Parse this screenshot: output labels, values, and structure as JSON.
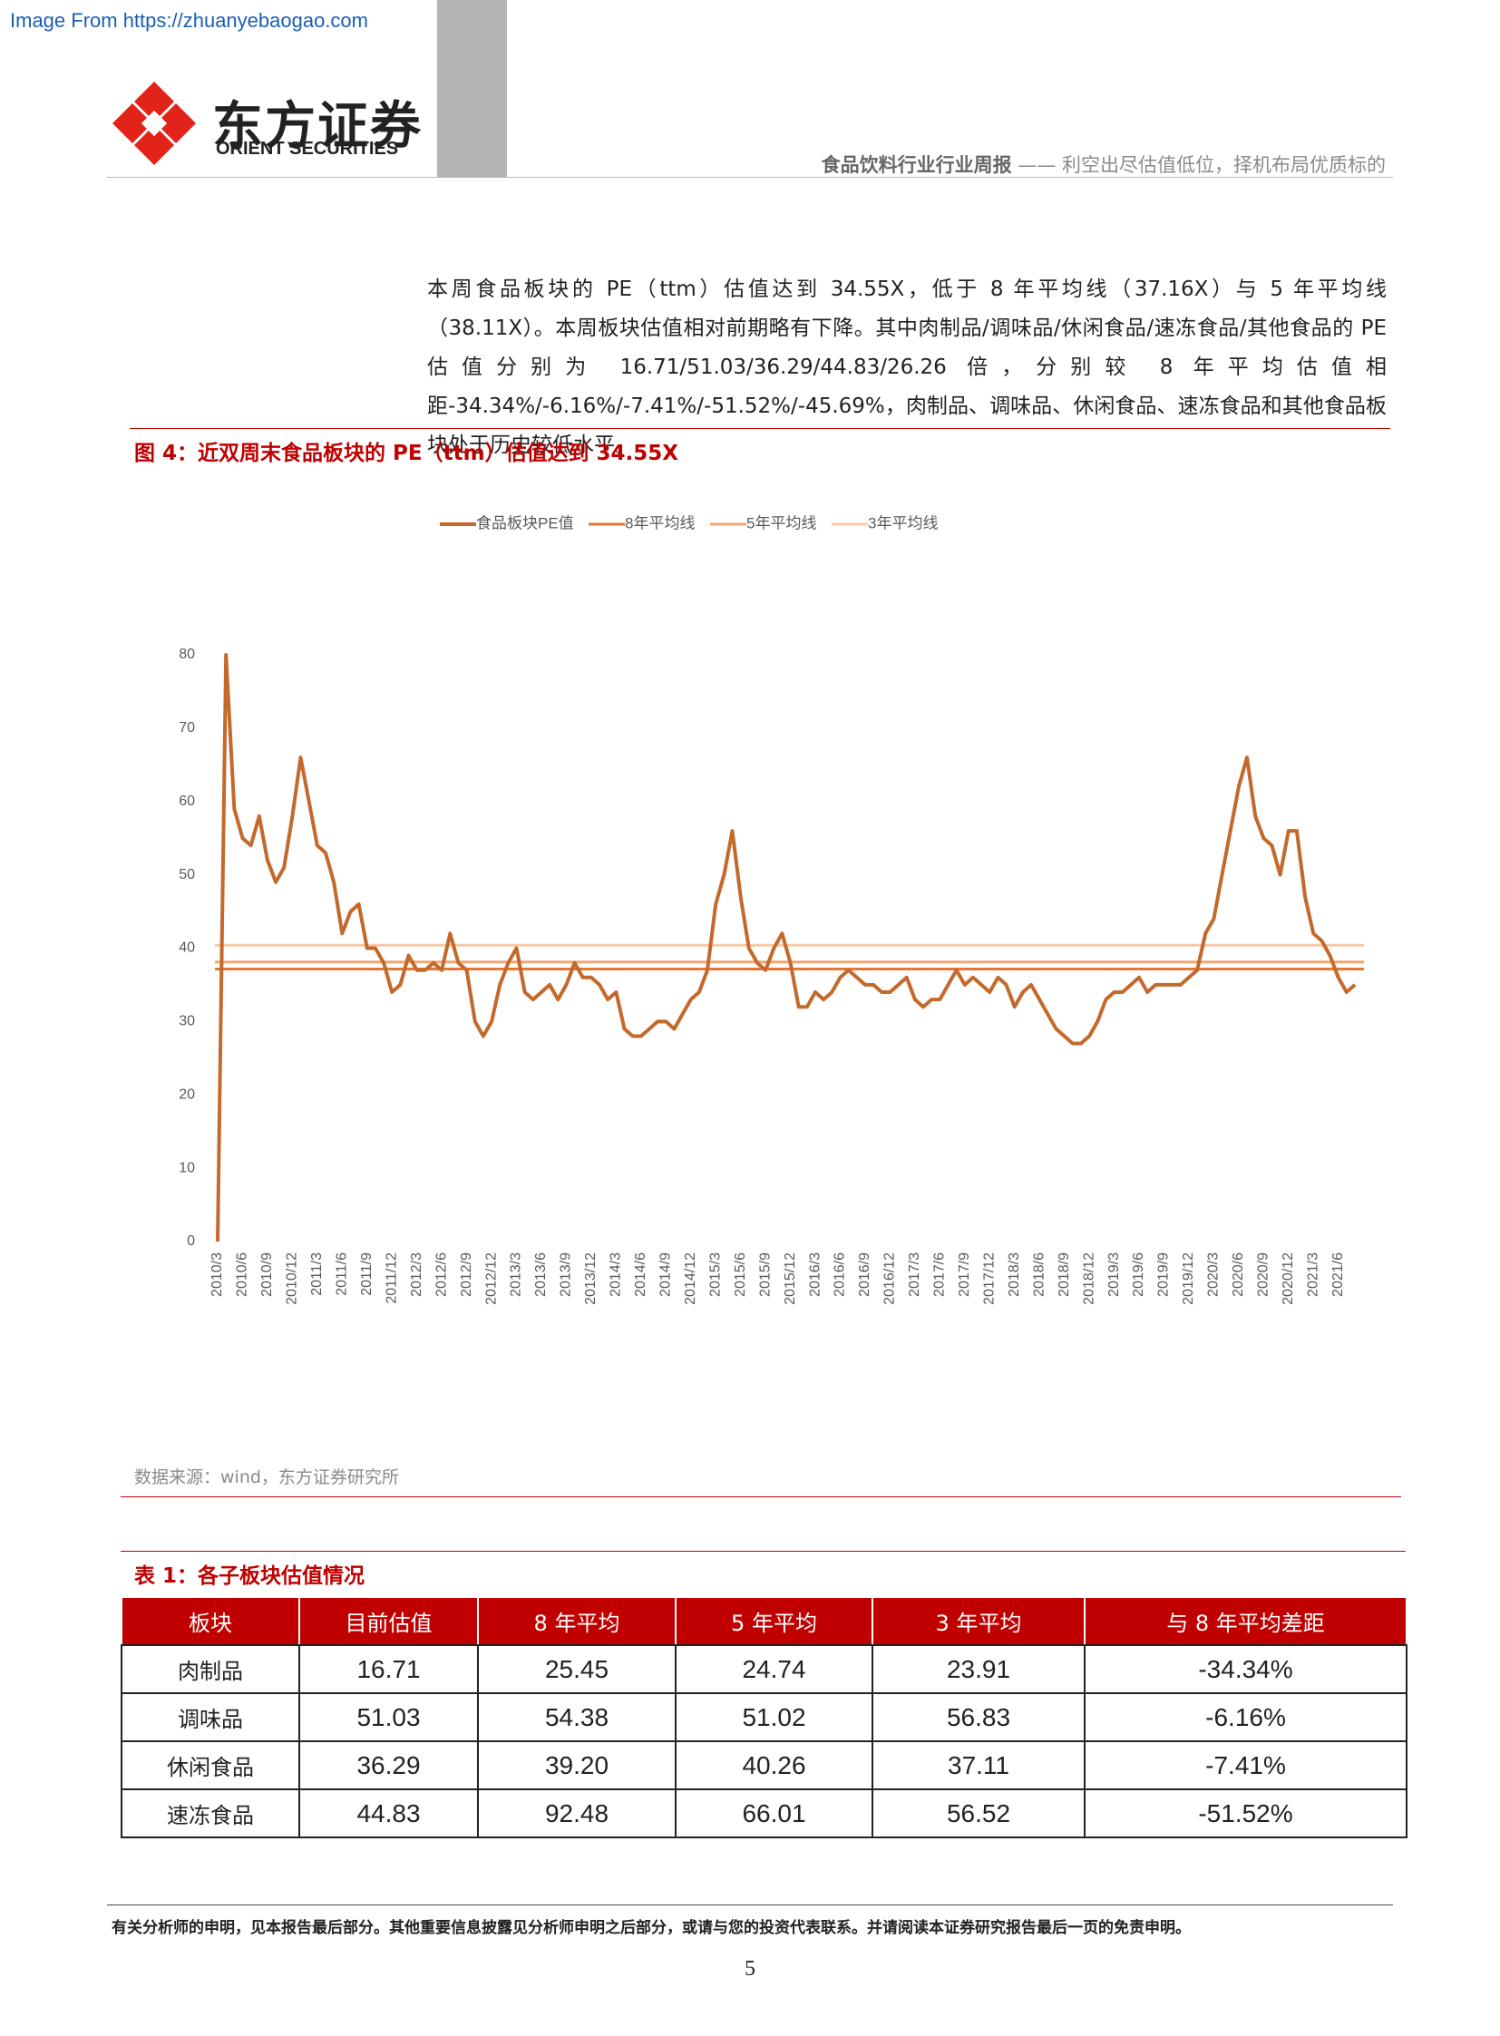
{
  "watermark": "Image From https://zhuanyebaogao.com",
  "header": {
    "logo_cn": "东方证券",
    "logo_en": "ORIENT SECURITIES",
    "report": "食品饮料行业行业周报",
    "dash": "——",
    "subtitle": "利空出尽估值低位，择机布局优质标的"
  },
  "body": {
    "paragraph": "本周食品板块的 PE（ttm）估值达到 34.55X，低于 8 年平均线（37.16X）与 5 年平均线（38.11X）。本周板块估值相对前期略有下降。其中肉制品/调味品/休闲食品/速冻食品/其他食品的 PE 估值分别为 16.71/51.03/36.29/44.83/26.26 倍，分别较 8 年平均估值相距-34.34%/-6.16%/-7.41%/-51.52%/-45.69%，肉制品、调味品、休闲食品、速冻食品和其他食品板块处于历史较低水平。"
  },
  "figure": {
    "caption": "图 4：近双周末食品板块的 PE（ttm）估值达到 34.55X",
    "source": "数据来源：wind，东方证券研究所"
  },
  "chart_data": {
    "type": "line",
    "categories": [
      "2010/3",
      null,
      null,
      "2010/6",
      null,
      null,
      "2010/9",
      null,
      null,
      "2010/12",
      null,
      null,
      "2011/3",
      null,
      null,
      "2011/6",
      null,
      null,
      "2011/9",
      null,
      null,
      "2011/12",
      null,
      null,
      "2012/3",
      null,
      null,
      "2012/6",
      null,
      null,
      "2012/9",
      null,
      null,
      "2012/12",
      null,
      null,
      "2013/3",
      null,
      null,
      "2013/6",
      null,
      null,
      "2013/9",
      null,
      null,
      "2013/12",
      null,
      null,
      "2014/3",
      null,
      null,
      "2014/6",
      null,
      null,
      "2014/9",
      null,
      null,
      "2014/12",
      null,
      null,
      "2015/3",
      null,
      null,
      "2015/6",
      null,
      null,
      "2015/9",
      null,
      null,
      "2015/12",
      null,
      null,
      "2016/3",
      null,
      null,
      "2016/6",
      null,
      null,
      "2016/9",
      null,
      null,
      "2016/12",
      null,
      null,
      "2017/3",
      null,
      null,
      "2017/6",
      null,
      null,
      "2017/9",
      null,
      null,
      "2017/12",
      null,
      null,
      "2018/3",
      null,
      null,
      "2018/6",
      null,
      null,
      "2018/9",
      null,
      null,
      "2018/12",
      null,
      null,
      "2019/3",
      null,
      null,
      "2019/6",
      null,
      null,
      "2019/9",
      null,
      null,
      "2019/12",
      null,
      null,
      "2020/3",
      null,
      null,
      "2020/6",
      null,
      null,
      "2020/9",
      null,
      null,
      "2020/12",
      null,
      null,
      "2021/3",
      null,
      null,
      "2021/6",
      null,
      null
    ],
    "series": [
      {
        "name": "食品板块PE值",
        "color": "#c4692c",
        "values": [
          0,
          80,
          59,
          55,
          54,
          58,
          52,
          49,
          51,
          58,
          66,
          60,
          54,
          53,
          49,
          42,
          45,
          46,
          40,
          40,
          38,
          34,
          35,
          39,
          37,
          37,
          38,
          37,
          42,
          38,
          37,
          30,
          28,
          30,
          35,
          38,
          40,
          34,
          33,
          34,
          35,
          33,
          35,
          38,
          36,
          36,
          35,
          33,
          34,
          29,
          28,
          28,
          29,
          30,
          30,
          29,
          31,
          33,
          34,
          37,
          46,
          50,
          56,
          47,
          40,
          38,
          37,
          40,
          42,
          38,
          32,
          32,
          34,
          33,
          34,
          36,
          37,
          36,
          35,
          35,
          34,
          34,
          35,
          36,
          33,
          32,
          33,
          33,
          35,
          37,
          35,
          36,
          35,
          34,
          36,
          35,
          32,
          34,
          35,
          33,
          31,
          29,
          28,
          27,
          27,
          28,
          30,
          33,
          34,
          34,
          35,
          36,
          34,
          35,
          35,
          35,
          35,
          36,
          37,
          42,
          44,
          50,
          56,
          62,
          66,
          58,
          55,
          54,
          50,
          56,
          56,
          47,
          42,
          41,
          39,
          36,
          34,
          35
        ]
      }
    ],
    "reference_lines": [
      {
        "name": "8年平均线",
        "color": "#e9762f",
        "value": 37.16
      },
      {
        "name": "5年平均线",
        "color": "#f0a774",
        "value": 38.11
      },
      {
        "name": "3年平均线",
        "color": "#f6c9a8",
        "value": 40.4
      }
    ],
    "ylim": [
      0,
      80
    ],
    "yticks": [
      0,
      10,
      20,
      30,
      40,
      50,
      60,
      70,
      80
    ],
    "grid": false,
    "legend": "top"
  },
  "table": {
    "caption": "表 1：各子板块估值情况",
    "header": [
      "板块",
      "目前估值",
      "8 年平均",
      "5 年平均",
      "3 年平均",
      "与 8 年平均差距"
    ],
    "rows": [
      [
        "肉制品",
        "16.71",
        "25.45",
        "24.74",
        "23.91",
        "-34.34%"
      ],
      [
        "调味品",
        "51.03",
        "54.38",
        "51.02",
        "56.83",
        "-6.16%"
      ],
      [
        "休闲食品",
        "36.29",
        "39.20",
        "40.26",
        "37.11",
        "-7.41%"
      ],
      [
        "速冻食品",
        "44.83",
        "92.48",
        "66.01",
        "56.52",
        "-51.52%"
      ]
    ]
  },
  "footer": {
    "disclaimer": "有关分析师的申明，见本报告最后部分。其他重要信息披露见分析师申明之后部分，或请与您的投资代表联系。并请阅读本证券研究报告最后一页的免责申明。",
    "page": "5"
  }
}
